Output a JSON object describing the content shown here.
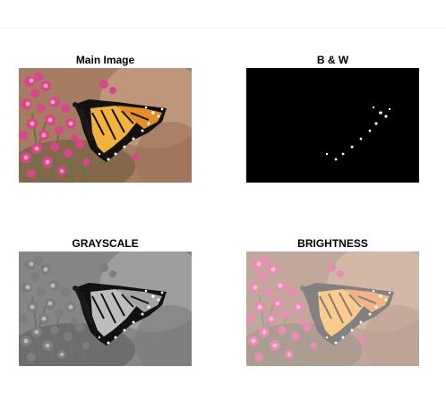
{
  "figure": {
    "panels": [
      {
        "id": "main",
        "title": "Main Image"
      },
      {
        "id": "bw",
        "title": "B & W"
      },
      {
        "id": "gray",
        "title": "GRAYSCALE"
      },
      {
        "id": "bright",
        "title": "BRIGHTNESS"
      }
    ]
  }
}
